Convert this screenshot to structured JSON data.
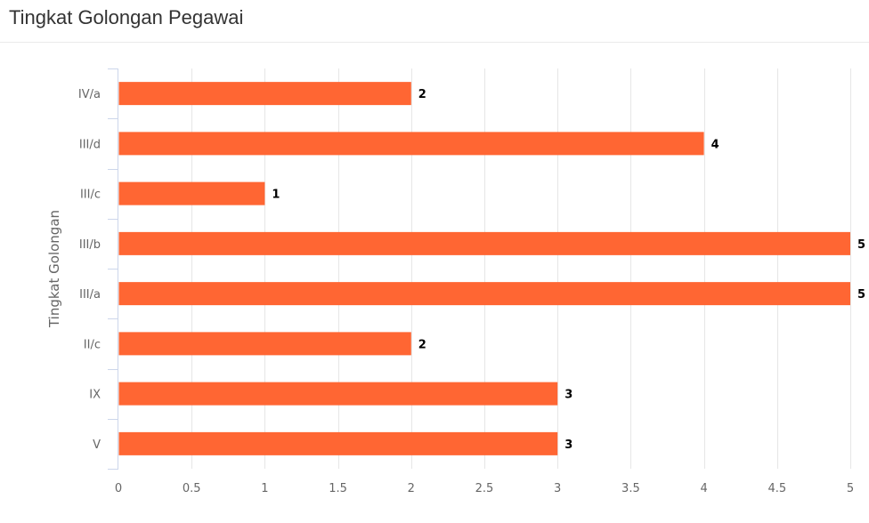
{
  "panel": {
    "title": "Tingkat Golongan Pegawai"
  },
  "chart_data": {
    "type": "bar",
    "orientation": "horizontal",
    "title": "",
    "xlabel": "",
    "ylabel": "Tingkat Golongan",
    "categories": [
      "IV/a",
      "III/d",
      "III/c",
      "III/b",
      "III/a",
      "II/c",
      "IX",
      "V"
    ],
    "values": [
      2,
      4,
      1,
      5,
      5,
      2,
      3,
      3
    ],
    "xlim": [
      0,
      5
    ],
    "x_ticks": [
      0,
      0.5,
      1,
      1.5,
      2,
      2.5,
      3,
      3.5,
      4,
      4.5,
      5
    ],
    "grid": "vertical",
    "legend": "none",
    "data_labels": true,
    "colors": {
      "bar": "#ff6633",
      "grid": "#e6e6e6",
      "axis": "#ccd6eb",
      "tick_text": "#666666",
      "data_label": "#000000"
    }
  }
}
